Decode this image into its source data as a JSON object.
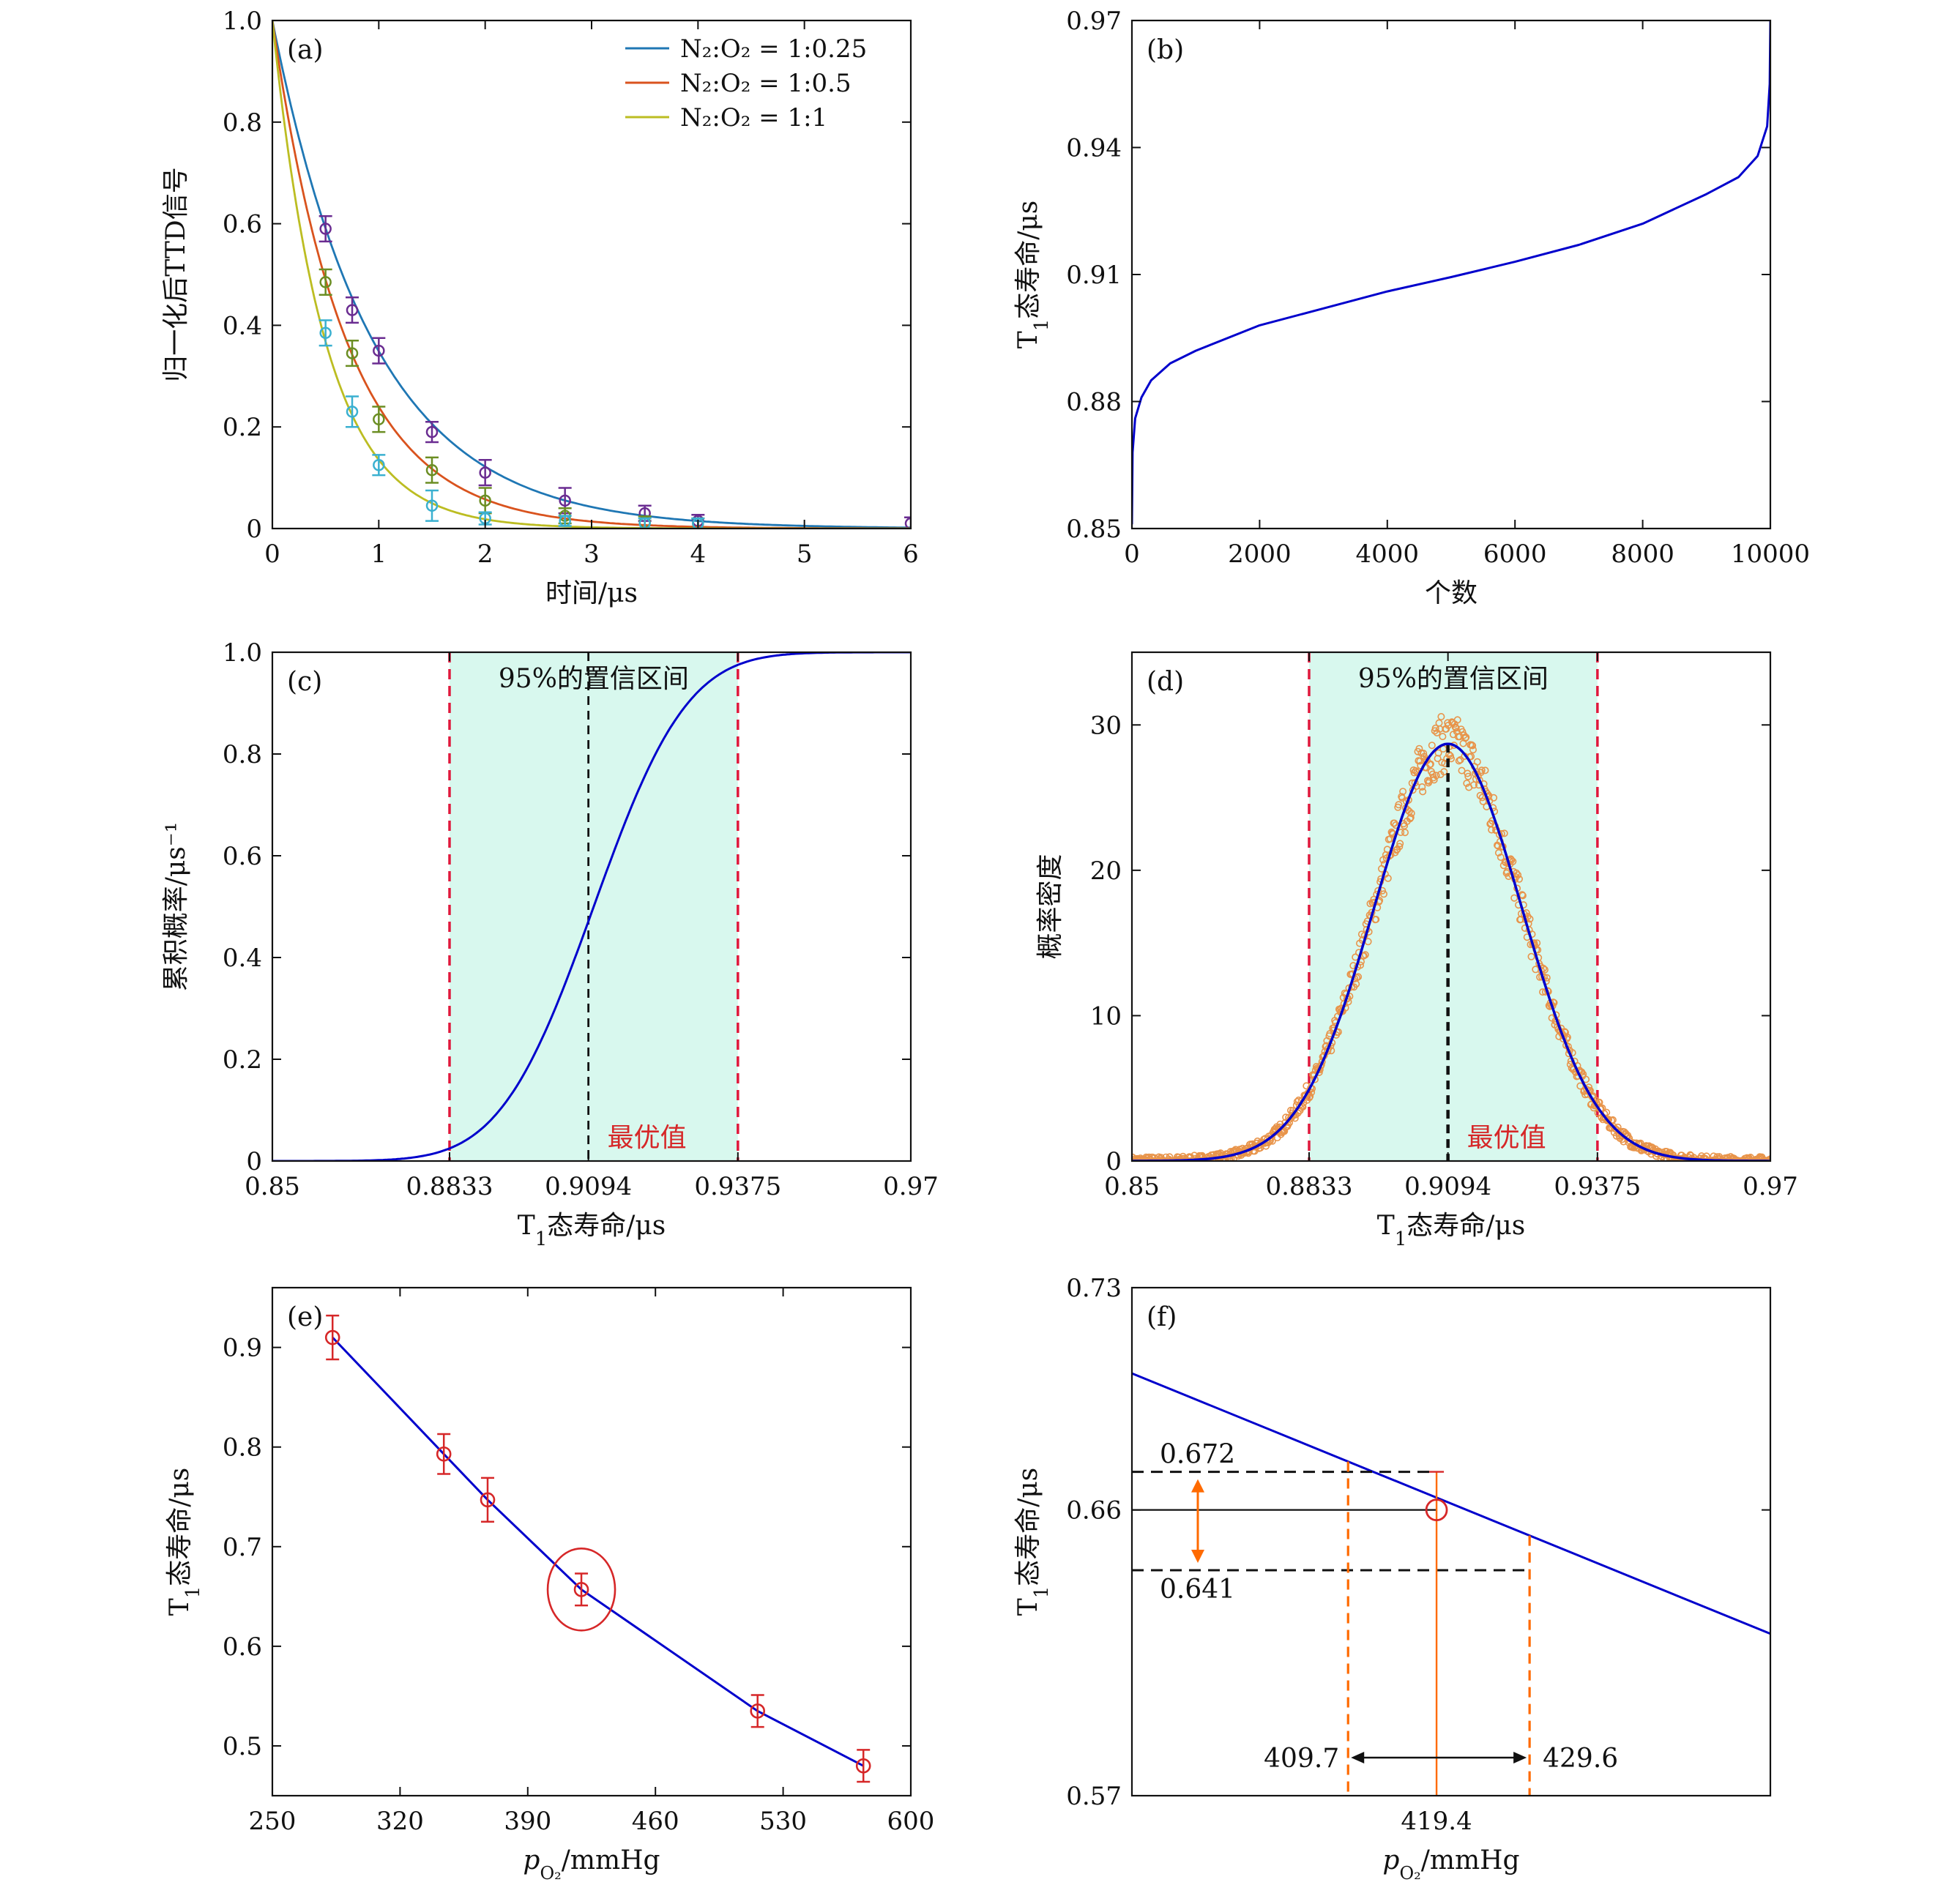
{
  "chart_data": [
    {
      "id": "a",
      "type": "scatter",
      "panel_label": "(a)",
      "xlabel": "时间/μs",
      "ylabel": "归一化后TTD信号",
      "xlim": [
        0,
        6
      ],
      "ylim": [
        0,
        1.0
      ],
      "xticks": [
        0,
        1,
        2,
        3,
        4,
        5,
        6
      ],
      "xtick_labels": [
        "0",
        "1",
        "2",
        "3",
        "4",
        "5",
        "6"
      ],
      "yticks": [
        0,
        0.2,
        0.4,
        0.6,
        0.8,
        1.0
      ],
      "ytick_labels": [
        "0",
        "0.2",
        "0.4",
        "0.6",
        "0.8",
        "1.0"
      ],
      "legend_position": "top-right",
      "series": [
        {
          "name": "N₂:O₂ = 1:0.25",
          "line_color": "#1f77b4",
          "point_color": "#6a2c91",
          "decay_tau": 0.95,
          "points": [
            {
              "x": 0.5,
              "y": 0.59,
              "err": 0.025
            },
            {
              "x": 0.75,
              "y": 0.43,
              "err": 0.025
            },
            {
              "x": 1.0,
              "y": 0.35,
              "err": 0.025
            },
            {
              "x": 1.5,
              "y": 0.19,
              "err": 0.02
            },
            {
              "x": 2.0,
              "y": 0.11,
              "err": 0.025
            },
            {
              "x": 2.75,
              "y": 0.055,
              "err": 0.025
            },
            {
              "x": 3.5,
              "y": 0.03,
              "err": 0.015
            },
            {
              "x": 4.0,
              "y": 0.015,
              "err": 0.012
            },
            {
              "x": 6.0,
              "y": 0.01,
              "err": 0.012
            }
          ]
        },
        {
          "name": "N₂:O₂ = 1:0.5",
          "line_color": "#d9531e",
          "point_color": "#6b8e23",
          "decay_tau": 0.7,
          "points": [
            {
              "x": 0.5,
              "y": 0.485,
              "err": 0.025
            },
            {
              "x": 0.75,
              "y": 0.345,
              "err": 0.025
            },
            {
              "x": 1.0,
              "y": 0.215,
              "err": 0.025
            },
            {
              "x": 1.5,
              "y": 0.115,
              "err": 0.025
            },
            {
              "x": 2.0,
              "y": 0.055,
              "err": 0.025
            },
            {
              "x": 2.75,
              "y": 0.025,
              "err": 0.015
            },
            {
              "x": 3.5,
              "y": 0.012,
              "err": 0.012
            },
            {
              "x": 4.0,
              "y": 0.01,
              "err": 0.01
            }
          ]
        },
        {
          "name": "N₂:O₂ = 1:1",
          "line_color": "#bcbd22",
          "point_color": "#3ab0d0",
          "decay_tau": 0.5,
          "points": [
            {
              "x": 0.5,
              "y": 0.385,
              "err": 0.025
            },
            {
              "x": 0.75,
              "y": 0.23,
              "err": 0.03
            },
            {
              "x": 1.0,
              "y": 0.125,
              "err": 0.02
            },
            {
              "x": 1.5,
              "y": 0.045,
              "err": 0.03
            },
            {
              "x": 2.0,
              "y": 0.02,
              "err": 0.012
            },
            {
              "x": 2.75,
              "y": 0.015,
              "err": 0.01
            },
            {
              "x": 3.5,
              "y": 0.01,
              "err": 0.01
            },
            {
              "x": 4.0,
              "y": 0.01,
              "err": 0.01
            }
          ]
        }
      ]
    },
    {
      "id": "b",
      "type": "line",
      "panel_label": "(b)",
      "xlabel": "个数",
      "ylabel": "T₁态寿命/μs",
      "xlim": [
        0,
        10000
      ],
      "ylim": [
        0.85,
        0.97
      ],
      "xticks": [
        0,
        2000,
        4000,
        6000,
        8000,
        10000
      ],
      "xtick_labels": [
        "0",
        "2000",
        "4000",
        "6000",
        "8000",
        "10000"
      ],
      "yticks": [
        0.85,
        0.88,
        0.91,
        0.94,
        0.97
      ],
      "ytick_labels": [
        "0.85",
        "0.88",
        "0.91",
        "0.94",
        "0.97"
      ],
      "line_color": "#0000cc",
      "x": [
        0,
        10,
        50,
        150,
        300,
        600,
        1000,
        2000,
        3000,
        4000,
        5000,
        6000,
        7000,
        8000,
        9000,
        9500,
        9800,
        9950,
        9990,
        10000
      ],
      "y": [
        0.851,
        0.868,
        0.876,
        0.881,
        0.885,
        0.889,
        0.892,
        0.898,
        0.902,
        0.906,
        0.9094,
        0.913,
        0.917,
        0.922,
        0.929,
        0.933,
        0.938,
        0.945,
        0.955,
        0.97
      ]
    },
    {
      "id": "c",
      "type": "line",
      "panel_label": "(c)",
      "xlabel": "T₁态寿命/μs",
      "ylabel": "累积概率/μs⁻¹",
      "xlim": [
        0.85,
        0.97
      ],
      "ylim": [
        0,
        1.0
      ],
      "xticks": [
        0.85,
        0.8833,
        0.9094,
        0.9375,
        0.97
      ],
      "xtick_labels": [
        "0.85",
        "0.8833",
        "0.9094",
        "0.9375",
        "0.97"
      ],
      "yticks": [
        0,
        0.2,
        0.4,
        0.6,
        0.8,
        1.0
      ],
      "ytick_labels": [
        "0",
        "0.2",
        "0.4",
        "0.6",
        "0.8",
        "1.0"
      ],
      "line_color": "#0000cc",
      "mean": 0.9104,
      "sigma": 0.0138,
      "ci_lower": 0.8833,
      "ci_upper": 0.9375,
      "optimal": 0.9094,
      "ci_text": "95%的置信区间",
      "optimal_text": "最优值",
      "ci_fill": "#d8f8ee"
    },
    {
      "id": "d",
      "type": "scatter",
      "panel_label": "(d)",
      "xlabel": "T₁态寿命/μs",
      "ylabel": "概率密度",
      "xlim": [
        0.85,
        0.97
      ],
      "ylim": [
        0,
        35
      ],
      "xticks": [
        0.85,
        0.8833,
        0.9094,
        0.9375,
        0.97
      ],
      "xtick_labels": [
        "0.85",
        "0.8833",
        "0.9094",
        "0.9375",
        "0.97"
      ],
      "yticks": [
        0,
        10,
        20,
        30
      ],
      "ytick_labels": [
        "0",
        "10",
        "20",
        "30"
      ],
      "line_color": "#0000cc",
      "point_color": "#e8944a",
      "mean": 0.9094,
      "sigma": 0.0139,
      "peak": 28.7,
      "ci_lower": 0.8833,
      "ci_upper": 0.9375,
      "optimal": 0.9094,
      "ci_text": "95%的置信区间",
      "optimal_text": "最优值",
      "ci_fill": "#d8f8ee"
    },
    {
      "id": "e",
      "type": "scatter",
      "panel_label": "(e)",
      "xlabel": "pO₂/mmHg",
      "ylabel": "T₁态寿命/μs",
      "xlim": [
        250,
        600
      ],
      "ylim": [
        0.45,
        0.96
      ],
      "xticks": [
        250,
        320,
        390,
        460,
        530,
        600
      ],
      "xtick_labels": [
        "250",
        "320",
        "390",
        "460",
        "530",
        "600"
      ],
      "yticks": [
        0.5,
        0.6,
        0.7,
        0.8,
        0.9
      ],
      "ytick_labels": [
        "0.5",
        "0.6",
        "0.7",
        "0.8",
        "0.9"
      ],
      "line_color": "#0000cc",
      "point_color": "#d62728",
      "points": [
        {
          "x": 283,
          "y": 0.91,
          "err": 0.022
        },
        {
          "x": 344,
          "y": 0.793,
          "err": 0.02
        },
        {
          "x": 368,
          "y": 0.747,
          "err": 0.022
        },
        {
          "x": 419.4,
          "y": 0.657,
          "err": 0.016
        },
        {
          "x": 516,
          "y": 0.535,
          "err": 0.016
        },
        {
          "x": 574,
          "y": 0.48,
          "err": 0.016
        }
      ],
      "highlight": {
        "x": 419.4,
        "y": 0.657
      }
    },
    {
      "id": "f",
      "type": "line",
      "panel_label": "(f)",
      "xlabel": "pO₂/mmHg",
      "ylabel": "T₁态寿命/μs",
      "xlim": [
        386,
        456
      ],
      "ylim": [
        0.57,
        0.73
      ],
      "yticks": [
        0.57,
        0.66,
        0.73
      ],
      "ytick_labels": [
        "0.57",
        "0.66",
        "0.73"
      ],
      "line_color": "#0000cc",
      "line_x": [
        386,
        456
      ],
      "line_y": [
        0.703,
        0.621
      ],
      "center_x": 419.4,
      "center_y": 0.66,
      "y_upper": 0.672,
      "y_lower": 0.641,
      "x_left": 409.7,
      "x_right": 429.6,
      "label_upper": "0.672",
      "label_lower": "0.641",
      "label_left": "409.7",
      "label_right": "429.6",
      "label_center": "419.4"
    }
  ]
}
